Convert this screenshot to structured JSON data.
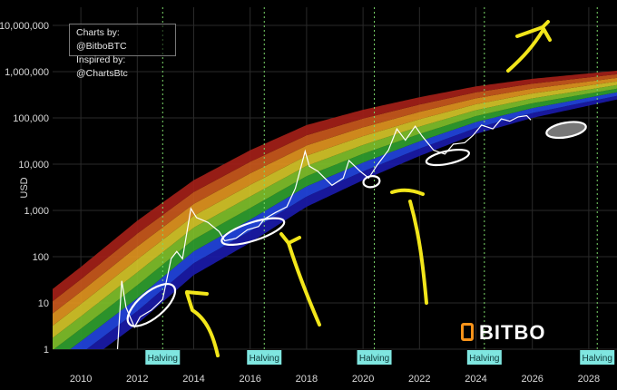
{
  "credit": {
    "line1": "Charts by: @BitboBTC",
    "line2": "Inspired by: @ChartsBtc"
  },
  "logo": {
    "text": "BITBO"
  },
  "colors": {
    "background": "#000000",
    "price_line": "#ffffff",
    "halving_line": "#7cd96a",
    "halving_box": "#7fe6e0",
    "annotation": "#f2e61a",
    "highlight_ellipse": "#ffffff",
    "bands": [
      "#1a1aa8",
      "#2244dd",
      "#2f9e2f",
      "#7fbf2a",
      "#d4c428",
      "#e0941f",
      "#c8581c",
      "#a32018"
    ]
  },
  "chart_data": {
    "type": "line",
    "title": "",
    "xlabel": "",
    "ylabel": "USD",
    "yscale": "log",
    "xlim": [
      2009.0,
      2029.0
    ],
    "ylim": [
      1,
      10000000
    ],
    "x_ticks": [
      2010,
      2012,
      2014,
      2016,
      2018,
      2020,
      2022,
      2024,
      2026,
      2028
    ],
    "x_tick_labels": [
      "2010",
      "2012",
      "2014",
      "2016",
      "2018",
      "2020",
      "2022",
      "2024",
      "2026",
      "2028"
    ],
    "y_ticks": [
      1,
      10,
      100,
      1000,
      10000,
      100000,
      1000000,
      10000000
    ],
    "y_tick_labels": [
      "1",
      "10",
      "100",
      "1,000",
      "10,000",
      "100,000",
      "1,000,000",
      "10,000,000"
    ],
    "grid": true,
    "halvings": [
      {
        "date": 2012.9,
        "label": "Halving"
      },
      {
        "date": 2016.5,
        "label": "Halving"
      },
      {
        "date": 2020.4,
        "label": "Halving"
      },
      {
        "date": 2024.3,
        "label": "Halving"
      },
      {
        "date": 2028.3,
        "label": "Halving"
      }
    ],
    "rainbow_bands": {
      "lower_edge": [
        [
          2010.8,
          1
        ],
        [
          2012,
          3.5
        ],
        [
          2014,
          40
        ],
        [
          2016,
          200
        ],
        [
          2018,
          1200
        ],
        [
          2020,
          4500
        ],
        [
          2022,
          15000
        ],
        [
          2024,
          45000
        ],
        [
          2026,
          100000
        ],
        [
          2029,
          250000
        ]
      ],
      "upper_edge": [
        [
          2009.0,
          20
        ],
        [
          2010,
          60
        ],
        [
          2012,
          600
        ],
        [
          2014,
          4500
        ],
        [
          2016,
          20000
        ],
        [
          2018,
          70000
        ],
        [
          2020,
          150000
        ],
        [
          2022,
          280000
        ],
        [
          2024,
          480000
        ],
        [
          2026,
          700000
        ],
        [
          2029,
          1050000
        ]
      ]
    },
    "series": [
      {
        "values": [
          [
            2011.3,
            1
          ],
          [
            2011.45,
            30
          ],
          [
            2011.6,
            8
          ],
          [
            2011.9,
            3
          ],
          [
            2012.1,
            5
          ],
          [
            2012.5,
            7
          ],
          [
            2012.9,
            12
          ],
          [
            2013.2,
            90
          ],
          [
            2013.4,
            130
          ],
          [
            2013.6,
            90
          ],
          [
            2013.9,
            1100
          ],
          [
            2014.1,
            700
          ],
          [
            2014.5,
            550
          ],
          [
            2014.9,
            350
          ],
          [
            2015.1,
            220
          ],
          [
            2015.5,
            250
          ],
          [
            2015.9,
            380
          ],
          [
            2016.3,
            450
          ],
          [
            2016.5,
            650
          ],
          [
            2016.9,
            900
          ],
          [
            2017.3,
            1200
          ],
          [
            2017.6,
            3000
          ],
          [
            2017.95,
            19000
          ],
          [
            2018.1,
            9000
          ],
          [
            2018.4,
            7000
          ],
          [
            2018.9,
            3500
          ],
          [
            2019.3,
            5000
          ],
          [
            2019.5,
            12000
          ],
          [
            2019.9,
            7000
          ],
          [
            2020.2,
            5000
          ],
          [
            2020.5,
            9500
          ],
          [
            2020.9,
            20000
          ],
          [
            2021.2,
            58000
          ],
          [
            2021.5,
            33000
          ],
          [
            2021.85,
            66000
          ],
          [
            2022.1,
            40000
          ],
          [
            2022.5,
            20000
          ],
          [
            2022.9,
            16500
          ],
          [
            2023.2,
            27000
          ],
          [
            2023.6,
            29000
          ],
          [
            2023.9,
            42000
          ],
          [
            2024.2,
            70000
          ],
          [
            2024.6,
            58000
          ],
          [
            2024.9,
            95000
          ],
          [
            2025.2,
            85000
          ],
          [
            2025.5,
            105000
          ],
          [
            2025.8,
            112000
          ],
          [
            2025.95,
            90000
          ]
        ]
      }
    ]
  }
}
